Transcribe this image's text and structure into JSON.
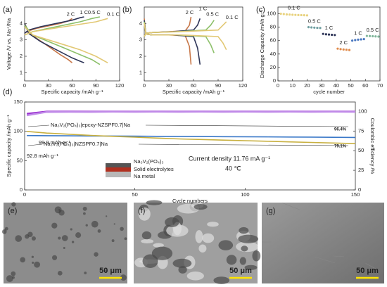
{
  "chart_data": [
    {
      "type": "line",
      "panel": "(a)",
      "xlabel": "Specific capacity /mAh g⁻¹",
      "ylabel": "Voltage /V vs. Na⁺/Na",
      "xlim": [
        0,
        120
      ],
      "xticks": [
        0,
        30,
        60,
        90,
        120
      ],
      "ylim": [
        0.5,
        5
      ],
      "yticks": [
        1,
        2,
        3,
        4
      ],
      "series": [
        {
          "name": "2 C",
          "color": "#c8784a",
          "x": [
            0,
            5,
            15,
            30,
            45,
            55,
            60,
            null,
            0,
            5,
            15,
            30,
            45,
            55,
            60
          ],
          "values": [
            3.4,
            3.55,
            3.7,
            3.85,
            4.0,
            4.15,
            4.3,
            null,
            4.0,
            3.5,
            3.1,
            2.6,
            2.1,
            1.8,
            1.6
          ]
        },
        {
          "name": "1 C",
          "color": "#2e3558",
          "x": [
            0,
            5,
            20,
            40,
            60,
            70,
            75,
            null,
            0,
            5,
            20,
            40,
            60,
            70,
            75
          ],
          "values": [
            3.4,
            3.6,
            3.8,
            4.0,
            4.2,
            4.35,
            4.4,
            null,
            4.0,
            3.4,
            2.9,
            2.4,
            1.9,
            1.7,
            1.6
          ]
        },
        {
          "name": "0.5 C",
          "color": "#8cc06a",
          "x": [
            0,
            10,
            30,
            50,
            70,
            85,
            95,
            null,
            0,
            10,
            30,
            50,
            70,
            85,
            95
          ],
          "values": [
            3.3,
            3.5,
            3.7,
            3.9,
            4.1,
            4.3,
            4.4,
            null,
            3.9,
            3.3,
            2.9,
            2.5,
            2.1,
            1.8,
            1.5
          ]
        },
        {
          "name": "0.1 C",
          "color": "#e2c874",
          "x": [
            0,
            10,
            30,
            50,
            70,
            90,
            105,
            null,
            0,
            10,
            30,
            50,
            70,
            90,
            105
          ],
          "values": [
            3.3,
            3.5,
            3.65,
            3.8,
            3.95,
            4.1,
            4.3,
            null,
            3.8,
            3.3,
            3.0,
            2.7,
            2.4,
            2.0,
            1.6
          ]
        }
      ]
    },
    {
      "type": "line",
      "panel": "(b)",
      "xlabel": "Specific capacity /mAh g⁻¹",
      "xlim": [
        0,
        120
      ],
      "xticks": [
        0,
        30,
        60,
        90,
        120
      ],
      "ylim": [
        0.5,
        5
      ],
      "yticks": [
        1,
        2,
        3,
        4
      ],
      "series": [
        {
          "name": "2 C",
          "color": "#c8784a",
          "x": [
            0,
            2,
            10,
            30,
            50,
            55,
            57,
            null,
            0,
            2,
            10,
            30,
            50,
            55,
            57
          ],
          "values": [
            3.2,
            3.4,
            3.45,
            3.5,
            3.55,
            3.9,
            4.4,
            null,
            4.3,
            3.35,
            3.3,
            3.3,
            3.25,
            2.6,
            1.5
          ]
        },
        {
          "name": "1 C",
          "color": "#2e3558",
          "x": [
            0,
            2,
            10,
            35,
            60,
            65,
            68,
            null,
            0,
            2,
            10,
            35,
            60,
            65,
            68
          ],
          "values": [
            3.2,
            3.4,
            3.45,
            3.5,
            3.6,
            3.9,
            4.3,
            null,
            4.2,
            3.35,
            3.3,
            3.3,
            3.2,
            2.5,
            1.5
          ]
        },
        {
          "name": "0.5 C",
          "color": "#8cc06a",
          "x": [
            0,
            2,
            10,
            40,
            75,
            81,
            85,
            null,
            0,
            2,
            10,
            40,
            75,
            81,
            85
          ],
          "values": [
            3.2,
            3.4,
            3.45,
            3.5,
            3.6,
            3.9,
            4.2,
            null,
            4.1,
            3.35,
            3.3,
            3.3,
            3.2,
            2.7,
            2.2
          ]
        },
        {
          "name": "0.1 C",
          "color": "#e2c874",
          "x": [
            0,
            2,
            10,
            45,
            90,
            96,
            100,
            null,
            0,
            2,
            10,
            45,
            90,
            96,
            100
          ],
          "values": [
            3.2,
            3.4,
            3.45,
            3.5,
            3.6,
            3.9,
            4.1,
            null,
            4.0,
            3.35,
            3.3,
            3.3,
            3.2,
            2.8,
            2.4
          ]
        }
      ]
    },
    {
      "type": "scatter",
      "panel": "(c)",
      "xlabel": "cycle  number",
      "ylabel": "Discharge Capacity /mAh g⁻¹",
      "xlim": [
        0,
        70
      ],
      "xticks": [
        0,
        10,
        20,
        30,
        40,
        50,
        60,
        70
      ],
      "ylim": [
        0,
        110
      ],
      "yticks": [
        0,
        20,
        40,
        60,
        80,
        100
      ],
      "series": [
        {
          "name": "0.1 C",
          "color": "#e8d27e",
          "x": [
            2,
            4,
            6,
            8,
            10,
            12,
            14,
            16,
            18,
            20
          ],
          "values": [
            100,
            99.5,
            99,
            98.8,
            98.5,
            98.3,
            98.1,
            98,
            97.8,
            97.6
          ]
        },
        {
          "name": "0.5 C",
          "color": "#6f9ea0",
          "x": [
            21,
            23,
            25,
            27,
            29
          ],
          "values": [
            80,
            79.6,
            79.3,
            79,
            78.8
          ]
        },
        {
          "name": "1 C",
          "color": "#2e3558",
          "x": [
            31,
            33,
            35,
            37,
            39
          ],
          "values": [
            70,
            69.4,
            69,
            68.6,
            68.3
          ]
        },
        {
          "name": "2 C",
          "color": "#e08a4a",
          "x": [
            41,
            43,
            45,
            47,
            49
          ],
          "values": [
            48,
            47.3,
            46.8,
            46.4,
            46
          ]
        },
        {
          "name": "1 C",
          "color": "#4a78c0",
          "x": [
            51,
            53,
            55,
            57,
            59
          ],
          "values": [
            60,
            60.8,
            61.4,
            61.8,
            62.2
          ]
        },
        {
          "name": "0.5 C",
          "color": "#7fb59a",
          "x": [
            61,
            63,
            65,
            67,
            69
          ],
          "values": [
            67,
            66.8,
            66.5,
            66.3,
            66
          ]
        }
      ]
    },
    {
      "type": "line",
      "panel": "(d)",
      "xlabel": "Cycle numbers",
      "ylabel": "Specific capacity /mAh g⁻¹",
      "y2label": "Coulombic efficiency /%",
      "xlim": [
        0,
        150
      ],
      "xticks": [
        0,
        50,
        100,
        150
      ],
      "ylim": [
        0,
        150
      ],
      "yticks": [
        0,
        50,
        100,
        150
      ],
      "y2lim": [
        0,
        112
      ],
      "y2ticks": [
        0,
        25,
        50,
        75,
        100
      ],
      "series": [
        {
          "color": "#9b30d0",
          "axis": "y2",
          "x": [
            1,
            10,
            20,
            30,
            40,
            50,
            60,
            70,
            80,
            90,
            100,
            110,
            120,
            130,
            140,
            150
          ],
          "values": [
            97,
            99.8,
            99.9,
            99.8,
            99.9,
            99.8,
            99.9,
            99.8,
            99.9,
            99.8,
            99.9,
            99.8,
            99.9,
            99.8,
            99.9,
            99.8
          ]
        },
        {
          "color": "#c08ae8",
          "axis": "y2",
          "x": [
            1,
            10,
            20,
            30,
            40,
            50,
            60,
            70,
            80,
            90,
            100,
            110,
            120,
            130,
            140,
            150
          ],
          "values": [
            95,
            99.3,
            99.5,
            99.4,
            99.6,
            99.5,
            99.6,
            99.5,
            99.6,
            99.5,
            99.6,
            99.5,
            99.6,
            99.5,
            99.6,
            99.5
          ]
        },
        {
          "name": "Na₃V₂(PO₄)₃|epcxy-NZSPF0.7|Na",
          "color": "#3a78c8",
          "x": [
            1,
            10,
            20,
            30,
            40,
            50,
            60,
            70,
            80,
            90,
            100,
            110,
            120,
            130,
            140,
            150
          ],
          "values": [
            92.8,
            92.5,
            92.3,
            92.1,
            91.9,
            91.7,
            91.5,
            91.3,
            91.1,
            90.9,
            90.7,
            90.5,
            90.3,
            90.1,
            89.8,
            89.5
          ]
        },
        {
          "name": "Na₃V₂(PO₄)₃|NZSPF0.7|Na",
          "color": "#c8b040",
          "x": [
            1,
            10,
            20,
            30,
            40,
            50,
            60,
            70,
            80,
            90,
            100,
            110,
            120,
            130,
            140,
            150
          ],
          "values": [
            99.9,
            97,
            95,
            93,
            91.5,
            90,
            88.5,
            87,
            86,
            85,
            84,
            83,
            82,
            81,
            80,
            79
          ]
        }
      ],
      "annotations": [
        "99.9 mAh g⁻¹",
        "92.8 mAh g⁻¹",
        "96.4%",
        "79.1%",
        "Current density 11.76 mA g⁻¹",
        "40 ℃",
        "Na₃V₂(PO₄)₃",
        "Solid electrolytes",
        "Na metal"
      ]
    }
  ],
  "images": [
    {
      "panel": "(e)",
      "scale_bar": "50 μm"
    },
    {
      "panel": "(f)",
      "scale_bar": "50 μm"
    },
    {
      "panel": "(g)",
      "scale_bar": "50 μm"
    }
  ]
}
